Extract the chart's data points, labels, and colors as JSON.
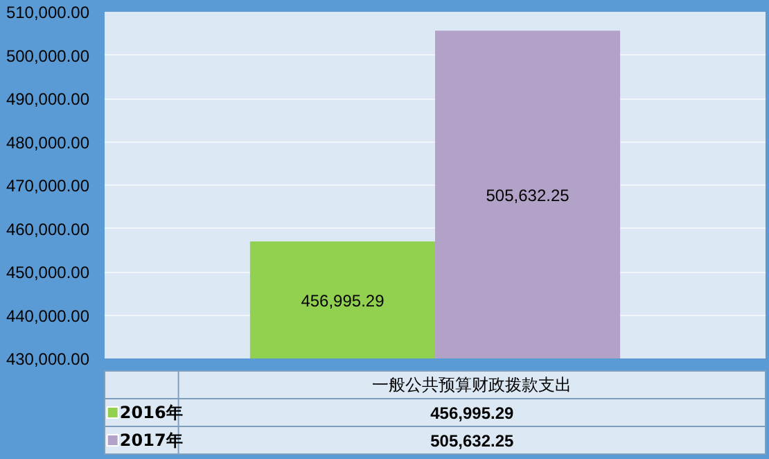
{
  "chart_data": {
    "type": "bar",
    "categories": [
      "一般公共预算财政拨款支出"
    ],
    "series": [
      {
        "name": "2016年",
        "color": "#92d050",
        "values": [
          456995.29
        ],
        "value_labels": [
          "456,995.29"
        ]
      },
      {
        "name": "2017年",
        "color": "#b3a2c7",
        "values": [
          505632.25
        ],
        "value_labels": [
          "505,632.25"
        ]
      }
    ],
    "ylim": [
      430000,
      510000
    ],
    "yticks": [
      {
        "value": 430000,
        "label": "430,000.00"
      },
      {
        "value": 440000,
        "label": "440,000.00"
      },
      {
        "value": 450000,
        "label": "450,000.00"
      },
      {
        "value": 460000,
        "label": "460,000.00"
      },
      {
        "value": 470000,
        "label": "470,000.00"
      },
      {
        "value": 480000,
        "label": "480,000.00"
      },
      {
        "value": 490000,
        "label": "490,000.00"
      },
      {
        "value": 500000,
        "label": "500,000.00"
      },
      {
        "value": 510000,
        "label": "510,000.00"
      }
    ],
    "grid": "y",
    "legend": "bottom"
  }
}
